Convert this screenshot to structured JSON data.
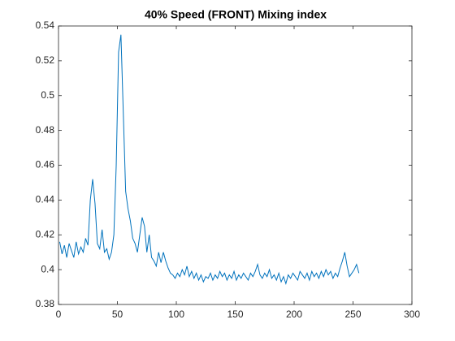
{
  "chart_data": {
    "type": "line",
    "title": "40% Speed (FRONT) Mixing index",
    "x": [
      1,
      3,
      5,
      7,
      9,
      11,
      13,
      15,
      17,
      19,
      21,
      23,
      25,
      27,
      29,
      31,
      33,
      35,
      37,
      39,
      41,
      43,
      45,
      47,
      49,
      51,
      53,
      55,
      57,
      59,
      61,
      63,
      65,
      67,
      69,
      71,
      73,
      75,
      77,
      79,
      81,
      83,
      85,
      87,
      89,
      91,
      93,
      95,
      97,
      99,
      101,
      103,
      105,
      107,
      109,
      111,
      113,
      115,
      117,
      119,
      121,
      123,
      125,
      127,
      129,
      131,
      133,
      135,
      137,
      139,
      141,
      143,
      145,
      147,
      149,
      151,
      153,
      155,
      157,
      159,
      161,
      163,
      165,
      167,
      169,
      171,
      173,
      175,
      177,
      179,
      181,
      183,
      185,
      187,
      189,
      191,
      193,
      195,
      197,
      199,
      201,
      203,
      205,
      207,
      209,
      211,
      213,
      215,
      217,
      219,
      221,
      223,
      225,
      227,
      229,
      231,
      233,
      235,
      237,
      239,
      241,
      243,
      245,
      247,
      249,
      251,
      253,
      255
    ],
    "values": [
      0.416,
      0.409,
      0.414,
      0.407,
      0.415,
      0.411,
      0.407,
      0.416,
      0.409,
      0.413,
      0.41,
      0.418,
      0.414,
      0.44,
      0.452,
      0.438,
      0.415,
      0.412,
      0.423,
      0.41,
      0.412,
      0.406,
      0.41,
      0.42,
      0.46,
      0.525,
      0.535,
      0.49,
      0.445,
      0.435,
      0.428,
      0.418,
      0.415,
      0.41,
      0.42,
      0.43,
      0.425,
      0.41,
      0.42,
      0.407,
      0.405,
      0.402,
      0.41,
      0.404,
      0.41,
      0.405,
      0.401,
      0.398,
      0.397,
      0.395,
      0.398,
      0.396,
      0.4,
      0.397,
      0.402,
      0.396,
      0.399,
      0.395,
      0.398,
      0.394,
      0.397,
      0.393,
      0.396,
      0.395,
      0.398,
      0.394,
      0.397,
      0.395,
      0.399,
      0.396,
      0.398,
      0.394,
      0.397,
      0.395,
      0.399,
      0.394,
      0.397,
      0.395,
      0.398,
      0.396,
      0.394,
      0.398,
      0.396,
      0.399,
      0.403,
      0.397,
      0.395,
      0.398,
      0.396,
      0.4,
      0.395,
      0.397,
      0.394,
      0.398,
      0.393,
      0.396,
      0.392,
      0.397,
      0.395,
      0.398,
      0.396,
      0.394,
      0.399,
      0.397,
      0.395,
      0.398,
      0.394,
      0.399,
      0.396,
      0.398,
      0.395,
      0.399,
      0.396,
      0.4,
      0.397,
      0.399,
      0.395,
      0.398,
      0.396,
      0.401,
      0.405,
      0.41,
      0.402,
      0.396,
      0.398,
      0.4,
      0.403,
      0.398
    ],
    "color": "#0072bd",
    "xlim": [
      0,
      300
    ],
    "xticks": [
      0,
      50,
      100,
      150,
      200,
      250,
      300
    ],
    "ylim": [
      0.38,
      0.54
    ],
    "yticks": [
      0.38,
      0.4,
      0.42,
      0.44,
      0.46,
      0.48,
      0.5,
      0.52,
      0.54
    ],
    "grid": false
  }
}
